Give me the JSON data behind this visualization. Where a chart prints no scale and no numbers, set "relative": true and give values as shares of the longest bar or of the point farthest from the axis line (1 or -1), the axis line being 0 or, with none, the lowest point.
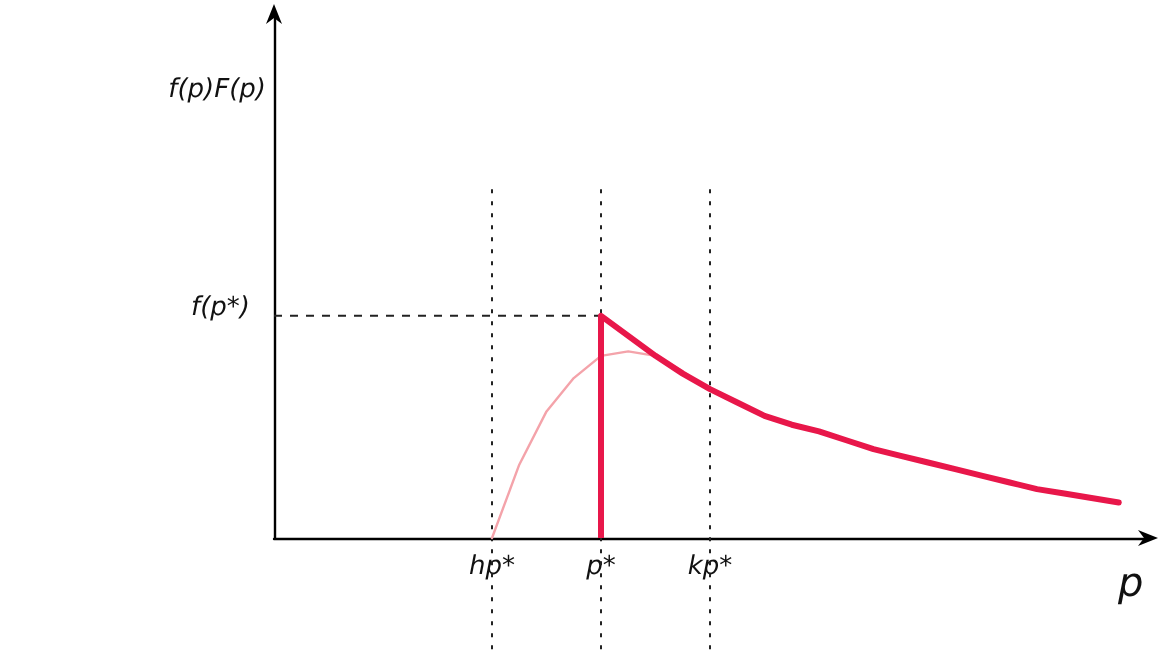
{
  "chart_data": {
    "type": "line",
    "relative": true,
    "xlabel": "p",
    "annotations": [
      "f(p)F(p)"
    ],
    "categories": [
      null,
      null,
      null,
      null,
      null,
      null,
      null,
      null,
      "hp*",
      null,
      null,
      null,
      "p*",
      null,
      null,
      null,
      "kp*",
      null,
      null,
      null,
      null,
      null,
      null,
      null,
      null,
      null,
      null,
      null,
      null,
      null,
      null,
      null,
      null
    ],
    "series": [
      {
        "color": "#f4a3aa",
        "values": [
          null,
          null,
          null,
          null,
          null,
          null,
          null,
          null,
          0,
          0.33,
          0.57,
          0.72,
          0.82,
          0.84,
          0.82,
          0.75,
          0.67,
          null,
          null,
          null,
          null,
          null,
          null,
          null,
          null,
          null,
          null,
          null,
          null,
          null,
          null,
          null,
          null
        ]
      },
      {
        "type": "bar",
        "color": "#e8174a",
        "values": [
          null,
          null,
          null,
          null,
          null,
          null,
          null,
          null,
          null,
          null,
          null,
          null,
          1,
          null,
          null,
          null,
          null,
          null,
          null,
          null,
          null,
          null,
          null,
          null,
          null,
          null,
          null,
          null,
          null,
          null,
          null,
          null,
          null
        ]
      },
      {
        "color": "#e8174a",
        "values": [
          null,
          null,
          null,
          null,
          null,
          null,
          null,
          null,
          null,
          null,
          null,
          null,
          1,
          0.91,
          0.82,
          0.74,
          0.67,
          0.61,
          0.55,
          0.51,
          0.48,
          0.44,
          0.4,
          0.37,
          0.34,
          0.31,
          0.28,
          0.25,
          0.22,
          0.2,
          0.18,
          0.16,
          null
        ]
      }
    ],
    "ref_lines": [
      {
        "axis": "x",
        "value": "hp*",
        "line_style": "dotted"
      },
      {
        "axis": "x",
        "value": "p*",
        "line_style": "dotted"
      },
      {
        "axis": "x",
        "value": "kp*",
        "line_style": "dotted"
      },
      {
        "axis": "y",
        "value": 1,
        "label": "f(p*)",
        "line_style": "dashed"
      }
    ],
    "grid": false,
    "marker": "none",
    "line_style": "solid"
  }
}
